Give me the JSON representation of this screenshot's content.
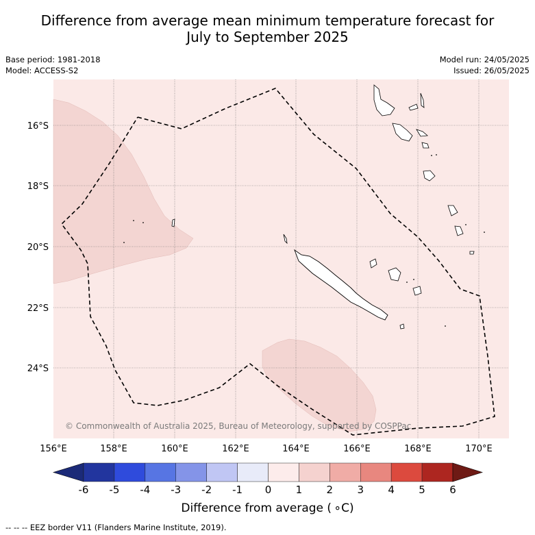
{
  "title_line1": "Difference from average mean minimum temperature forecast for",
  "title_line2": "July to September 2025",
  "base_period": "Base period: 1981-2018",
  "model": "Model: ACCESS-S2",
  "model_run": "Model run: 24/05/2025",
  "issued": "Issued: 26/05/2025",
  "copyright": "© Commonwealth of Australia 2025, Bureau of Meteorology, supported by COSPPac",
  "map": {
    "lon_ticks": [
      "156°E",
      "158°E",
      "160°E",
      "162°E",
      "164°E",
      "166°E",
      "168°E",
      "170°E"
    ],
    "lat_ticks": [
      "16°S",
      "18°S",
      "20°S",
      "22°S",
      "24°S"
    ],
    "background_color": "#fbe9e7",
    "anomaly_color": "#f3d5d2"
  },
  "colorbar": {
    "title": "Difference from average ( ∘C)",
    "ticks": [
      "-6",
      "-5",
      "-4",
      "-3",
      "-2",
      "-1",
      "0",
      "1",
      "2",
      "3",
      "4",
      "5",
      "6"
    ],
    "colors": [
      "#22359e",
      "#2f4bdc",
      "#5775e3",
      "#8494e8",
      "#c0c6f4",
      "#e8ebf9",
      "#fdeceb",
      "#f5d2cf",
      "#f0aca6",
      "#e8877f",
      "#dc4a3e",
      "#ad2620"
    ],
    "low_extend": "#1b2a78",
    "high_extend": "#6e1a15"
  },
  "footnote": "--  --  -- EEZ border V11 (Flanders Marine Institute, 2019)."
}
